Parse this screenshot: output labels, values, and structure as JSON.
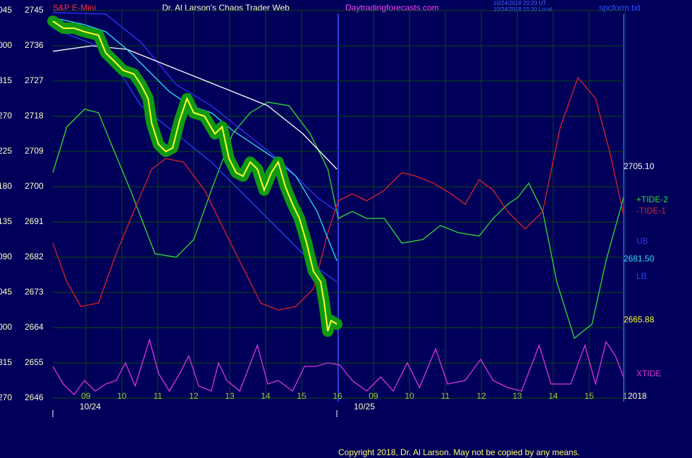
{
  "chart_data": {
    "type": "line",
    "symbol": "S&P E-Mini",
    "title": "Dr. Al Larson's Chaos Trader Web",
    "site": "Daytradingforecasts.com",
    "timestamps": [
      "10/24/2018 20:20 UT",
      "10/24/2018 15:20 Local"
    ],
    "file": "spcform.txt",
    "copyright": "Copyright 2018, Dr. Al Larson. May not be copied by any means.",
    "year_label": "2018",
    "day_labels": [
      "10/24",
      "10/25"
    ],
    "ylim": [
      2646,
      2745
    ],
    "yticks": [
      2745,
      2736,
      2727,
      2718,
      2709,
      2700,
      2691,
      2682,
      2673,
      2664,
      2655,
      2646
    ],
    "angle_labels": [
      "045",
      "000",
      "315",
      "270",
      "225",
      "180",
      "135",
      "090",
      "045",
      "000",
      "315",
      "270"
    ],
    "xlim": [
      0.08,
      15.96
    ],
    "xticks": [
      {
        "value": 1,
        "label": "09"
      },
      {
        "value": 2,
        "label": "10"
      },
      {
        "value": 3,
        "label": "11"
      },
      {
        "value": 4,
        "label": "12"
      },
      {
        "value": 5,
        "label": "13"
      },
      {
        "value": 6,
        "label": "14"
      },
      {
        "value": 7,
        "label": "15"
      },
      {
        "value": 8,
        "label": "16"
      },
      {
        "value": 9,
        "label": "09"
      },
      {
        "value": 10,
        "label": "10"
      },
      {
        "value": 11,
        "label": "11"
      },
      {
        "value": 12,
        "label": "12"
      },
      {
        "value": 13,
        "label": "13"
      },
      {
        "value": 14,
        "label": "14"
      },
      {
        "value": 15,
        "label": "15"
      },
      {
        "value": 16,
        "label": "1"
      }
    ],
    "grid": true,
    "series": [
      {
        "name": "+TIDE-2",
        "color": "#33dd33",
        "x": [
          0.08,
          0.47,
          0.96,
          1.35,
          1.75,
          2.24,
          2.92,
          3.51,
          4.0,
          4.49,
          5.08,
          5.57,
          6.06,
          6.65,
          7.24,
          7.73,
          8.02,
          8.41,
          8.81,
          9.3,
          9.79,
          10.37,
          10.86,
          11.35,
          11.94,
          12.33,
          12.73,
          13.02,
          13.32,
          13.71,
          14.1,
          14.59,
          15.08,
          15.47,
          15.96
        ],
        "values": [
          2703.6,
          2715.3,
          2719.8,
          2718.9,
          2709.9,
          2699.1,
          2682.9,
          2682.0,
          2686.5,
          2699.1,
          2713.5,
          2718.9,
          2721.6,
          2720.7,
          2713.5,
          2704.5,
          2691.9,
          2693.7,
          2691.9,
          2691.9,
          2685.6,
          2686.5,
          2690.1,
          2688.3,
          2687.4,
          2691.9,
          2695.5,
          2697.3,
          2700.9,
          2693.7,
          2675.7,
          2661.3,
          2664.9,
          2681.1,
          2697.3
        ]
      },
      {
        "name": "-TIDE-1",
        "color": "#dd2222",
        "x": [
          0.08,
          0.47,
          0.86,
          1.35,
          1.84,
          2.33,
          2.83,
          3.22,
          3.71,
          4.3,
          4.88,
          5.37,
          5.86,
          6.35,
          6.84,
          7.33,
          7.73,
          8.02,
          8.41,
          8.81,
          9.3,
          9.79,
          10.18,
          10.67,
          11.16,
          11.55,
          11.94,
          12.33,
          12.73,
          13.22,
          13.71,
          14.2,
          14.69,
          15.18,
          15.57,
          15.96
        ],
        "values": [
          2685.6,
          2675.7,
          2669.4,
          2670.3,
          2682.9,
          2693.7,
          2704.5,
          2707.2,
          2706.3,
          2699.1,
          2688.3,
          2679.3,
          2670.3,
          2668.5,
          2669.4,
          2673.9,
          2688.3,
          2696.4,
          2698.2,
          2696.4,
          2699.1,
          2703.6,
          2702.7,
          2700.9,
          2698.2,
          2695.5,
          2701.8,
          2699.1,
          2693.7,
          2689.2,
          2693.7,
          2715.3,
          2727.9,
          2722.5,
          2709.0,
          2692.8
        ]
      },
      {
        "name": "UB",
        "color": "#3333ff",
        "x": [
          0.08,
          1.55,
          2.53,
          3.51,
          4.49,
          5.47,
          6.45,
          7.43,
          7.98
        ],
        "values": [
          2744.5,
          2744.1,
          2736.9,
          2726.1,
          2720.7,
          2713.5,
          2706.3,
          2697.3,
          2693.7
        ]
      },
      {
        "name": "LB",
        "color": "#2244ee",
        "x": [
          0.08,
          1.55,
          2.53,
          3.51,
          4.49,
          5.47,
          6.45,
          7.43,
          7.98
        ],
        "values": [
          2740.5,
          2735.1,
          2720.7,
          2713.5,
          2706.3,
          2697.3,
          2688.3,
          2679.3,
          2675.7
        ]
      },
      {
        "name": "XTIDE",
        "color": "#dd33dd",
        "x": [
          0.08,
          0.37,
          0.67,
          0.96,
          1.26,
          1.55,
          1.84,
          2.1,
          2.37,
          2.77,
          3.02,
          3.32,
          3.61,
          3.86,
          4.14,
          4.49,
          4.69,
          4.92,
          5.28,
          5.77,
          6.06,
          6.35,
          6.75,
          7.08,
          7.39,
          7.73,
          8.06,
          8.41,
          8.81,
          9.2,
          9.55,
          9.94,
          10.28,
          10.73,
          11.06,
          11.55,
          11.98,
          12.33,
          12.73,
          13.12,
          13.61,
          13.94,
          14.49,
          14.88,
          15.18,
          15.47,
          15.73,
          15.96
        ],
        "values": [
          2654.1,
          2649.6,
          2646.9,
          2650.5,
          2647.8,
          2649.6,
          2650.5,
          2655.0,
          2649.1,
          2660.9,
          2652.3,
          2647.8,
          2652.3,
          2656.8,
          2649.1,
          2647.8,
          2655.0,
          2650.5,
          2647.8,
          2659.5,
          2649.6,
          2650.5,
          2647.8,
          2654.1,
          2654.1,
          2655.0,
          2654.5,
          2650.5,
          2647.8,
          2651.4,
          2647.8,
          2655.0,
          2648.7,
          2658.6,
          2649.6,
          2650.5,
          2655.9,
          2650.5,
          2648.7,
          2647.8,
          2659.5,
          2649.6,
          2649.6,
          2659.5,
          2649.6,
          2660.4,
          2656.8,
          2651.4
        ]
      },
      {
        "color": "#ffffff",
        "last": {
          "value": 2705.1,
          "label": "2705.10"
        },
        "x": [
          0.08,
          1.16,
          2.14,
          3.12,
          4.1,
          5.08,
          6.06,
          7.04,
          7.98
        ],
        "values": [
          2734.6,
          2736.0,
          2735.1,
          2731.5,
          2727.9,
          2724.3,
          2720.7,
          2713.5,
          2704.5
        ]
      },
      {
        "color": "#33ddff",
        "last": {
          "value": 2681.5,
          "label": "2681.50"
        },
        "x": [
          0.08,
          0.96,
          1.55,
          2.14,
          2.73,
          3.32,
          3.9,
          4.49,
          5.08,
          5.67,
          6.26,
          6.84,
          7.43,
          7.98
        ],
        "values": [
          2743.2,
          2741.4,
          2739.6,
          2735.1,
          2729.7,
          2724.3,
          2720.7,
          2718.9,
          2714.4,
          2710.8,
          2707.2,
          2702.7,
          2693.7,
          2681.1
        ]
      },
      {
        "color": "#ffff33",
        "halo_color": "#109a10",
        "last": {
          "value": 2665.88,
          "label": "2665.88"
        },
        "x": [
          0.08,
          0.37,
          0.67,
          0.96,
          1.35,
          1.55,
          1.75,
          2.04,
          2.33,
          2.53,
          2.73,
          2.83,
          3.02,
          3.22,
          3.41,
          3.61,
          3.81,
          4.0,
          4.3,
          4.59,
          4.79,
          4.98,
          5.18,
          5.37,
          5.57,
          5.77,
          5.96,
          6.16,
          6.35,
          6.55,
          6.75,
          6.94,
          7.14,
          7.33,
          7.53,
          7.63,
          7.73,
          7.82,
          7.98
        ],
        "values": [
          2742.3,
          2740.5,
          2740.5,
          2739.6,
          2738.7,
          2734.2,
          2732.4,
          2729.7,
          2728.8,
          2726.1,
          2722.5,
          2716.2,
          2710.8,
          2709.0,
          2709.9,
          2717.1,
          2722.5,
          2718.9,
          2718.0,
          2713.5,
          2715.3,
          2707.2,
          2703.6,
          2702.7,
          2706.3,
          2704.5,
          2699.1,
          2703.6,
          2706.3,
          2700.0,
          2695.5,
          2691.9,
          2685.6,
          2678.4,
          2675.7,
          2670.3,
          2663.1,
          2665.8,
          2664.9
        ]
      }
    ]
  }
}
